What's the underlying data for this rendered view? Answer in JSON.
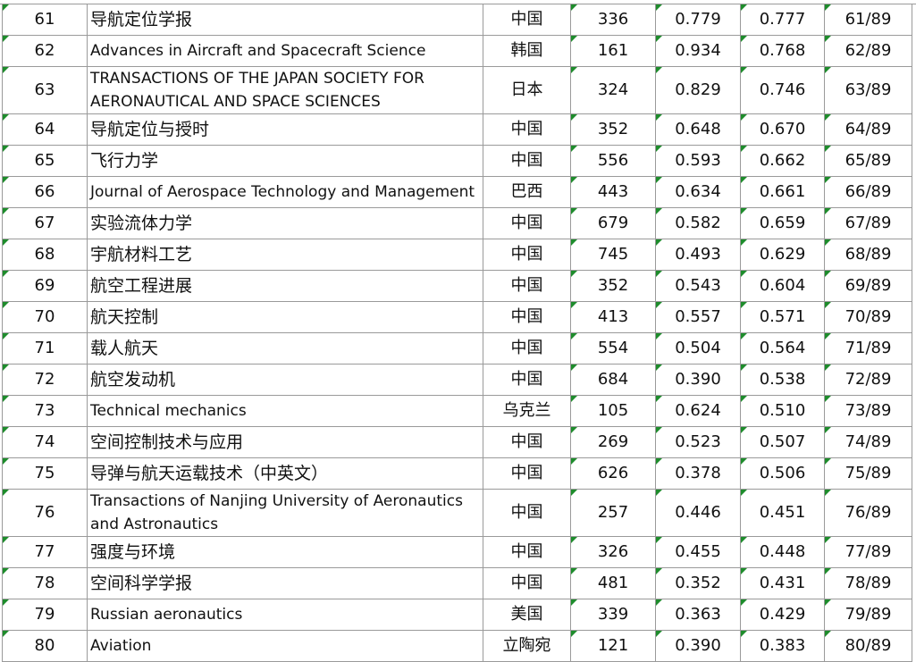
{
  "table": {
    "rows": [
      [
        "61",
        "导航定位学报",
        "中国",
        "336",
        "0.779",
        "0.777",
        "61/89"
      ],
      [
        "62",
        "Advances in Aircraft and Spacecraft Science",
        "韩国",
        "161",
        "0.934",
        "0.768",
        "62/89"
      ],
      [
        "63",
        "TRANSACTIONS OF THE JAPAN SOCIETY FOR AERONAUTICAL AND SPACE SCIENCES",
        "日本",
        "324",
        "0.829",
        "0.746",
        "63/89"
      ],
      [
        "64",
        "导航定位与授时",
        "中国",
        "352",
        "0.648",
        "0.670",
        "64/89"
      ],
      [
        "65",
        "飞行力学",
        "中国",
        "556",
        "0.593",
        "0.662",
        "65/89"
      ],
      [
        "66",
        "Journal of Aerospace Technology and Management",
        "巴西",
        "443",
        "0.634",
        "0.661",
        "66/89"
      ],
      [
        "67",
        "实验流体力学",
        "中国",
        "679",
        "0.582",
        "0.659",
        "67/89"
      ],
      [
        "68",
        "宇航材料工艺",
        "中国",
        "745",
        "0.493",
        "0.629",
        "68/89"
      ],
      [
        "69",
        "航空工程进展",
        "中国",
        "352",
        "0.543",
        "0.604",
        "69/89"
      ],
      [
        "70",
        "航天控制",
        "中国",
        "413",
        "0.557",
        "0.571",
        "70/89"
      ],
      [
        "71",
        "载人航天",
        "中国",
        "554",
        "0.504",
        "0.564",
        "71/89"
      ],
      [
        "72",
        "航空发动机",
        "中国",
        "684",
        "0.390",
        "0.538",
        "72/89"
      ],
      [
        "73",
        "Technical mechanics",
        "乌克兰",
        "105",
        "0.624",
        "0.510",
        "73/89"
      ],
      [
        "74",
        "空间控制技术与应用",
        "中国",
        "269",
        "0.523",
        "0.507",
        "74/89"
      ],
      [
        "75",
        "导弹与航天运载技术（中英文）",
        "中国",
        "626",
        "0.378",
        "0.506",
        "75/89"
      ],
      [
        "76",
        "Transactions of Nanjing University of Aeronautics and Astronautics",
        "中国",
        "257",
        "0.446",
        "0.451",
        "76/89"
      ],
      [
        "77",
        "强度与环境",
        "中国",
        "326",
        "0.455",
        "0.448",
        "77/89"
      ],
      [
        "78",
        "空间科学学报",
        "中国",
        "481",
        "0.352",
        "0.431",
        "78/89"
      ],
      [
        "79",
        "Russian aeronautics",
        "美国",
        "339",
        "0.363",
        "0.429",
        "79/89"
      ],
      [
        "80",
        "Aviation",
        "立陶宛",
        "121",
        "0.390",
        "0.383",
        "80/89"
      ]
    ]
  }
}
